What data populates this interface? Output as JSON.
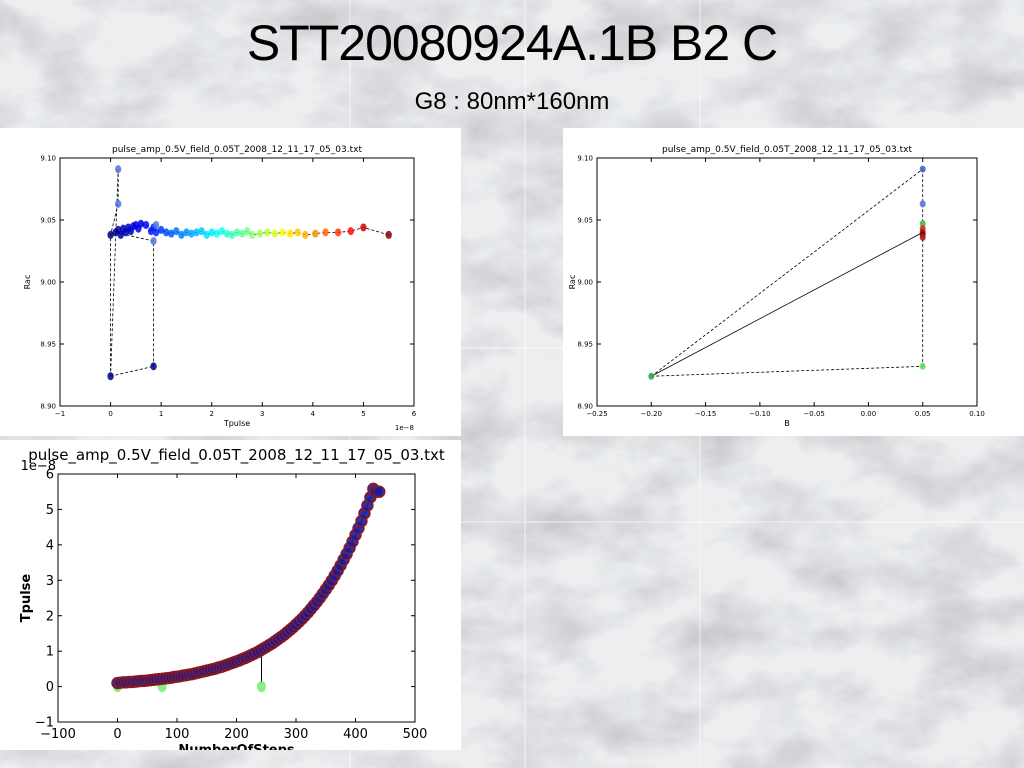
{
  "slide": {
    "title": "STT20080924A.1B B2 C",
    "subtitle": "G8 : 80nm*160nm"
  },
  "chart_data": [
    {
      "type": "scatter",
      "title": "pulse_amp_0.5V_field_0.05T_2008_12_11_17_05_03.txt",
      "xlabel": "Tpulse",
      "ylabel": "Rac",
      "x_offset_label": "1e−8",
      "xlim": [
        -1,
        6
      ],
      "ylim": [
        8.9,
        9.1
      ],
      "xticks": [
        "−1",
        "0",
        "1",
        "2",
        "3",
        "4",
        "5",
        "6"
      ],
      "yticks": [
        "8.90",
        "8.95",
        "9.00",
        "9.05",
        "9.10"
      ],
      "colormap": "jet",
      "x": [
        0.0,
        0.1,
        0.15,
        0.2,
        0.25,
        0.3,
        0.35,
        0.4,
        0.45,
        0.5,
        0.55,
        0.6,
        0.7,
        0.8,
        0.85,
        0.9,
        1.0,
        1.1,
        1.2,
        1.3,
        1.4,
        1.5,
        1.6,
        1.7,
        1.8,
        1.9,
        2.0,
        2.1,
        2.2,
        2.3,
        2.4,
        2.5,
        2.6,
        2.7,
        2.8,
        2.95,
        3.1,
        3.25,
        3.4,
        3.55,
        3.7,
        3.85,
        4.05,
        4.25,
        4.5,
        4.75,
        5.0,
        5.5,
        0.0,
        0.15,
        0.15,
        0.85,
        0.85,
        0.9
      ],
      "y": [
        9.038,
        9.04,
        9.042,
        9.038,
        9.043,
        9.04,
        9.044,
        9.041,
        9.045,
        9.046,
        9.043,
        9.047,
        9.046,
        9.041,
        9.044,
        9.04,
        9.042,
        9.04,
        9.039,
        9.041,
        9.038,
        9.04,
        9.039,
        9.04,
        9.041,
        9.038,
        9.04,
        9.039,
        9.041,
        9.039,
        9.038,
        9.04,
        9.039,
        9.041,
        9.038,
        9.039,
        9.04,
        9.039,
        9.04,
        9.039,
        9.04,
        9.038,
        9.039,
        9.04,
        9.04,
        9.041,
        9.044,
        9.038,
        8.924,
        9.091,
        9.063,
        8.932,
        9.033,
        9.046
      ]
    },
    {
      "type": "scatter",
      "title": "pulse_amp_0.5V_field_0.05T_2008_12_11_17_05_03.txt",
      "xlabel": "B",
      "ylabel": "Rac",
      "xlim": [
        -0.25,
        0.1
      ],
      "ylim": [
        8.9,
        9.1
      ],
      "xticks": [
        "−0.25",
        "−0.20",
        "−0.15",
        "−0.10",
        "−0.05",
        "0.00",
        "0.05",
        "0.10"
      ],
      "yticks": [
        "8.90",
        "8.95",
        "9.00",
        "9.05",
        "9.10"
      ],
      "x": [
        -0.2,
        0.05,
        0.05,
        0.05,
        0.05,
        0.05,
        0.05,
        0.05,
        0.05
      ],
      "y": [
        8.924,
        9.091,
        9.063,
        9.047,
        9.043,
        9.04,
        9.038,
        9.036,
        8.932
      ]
    },
    {
      "type": "scatter",
      "title": "pulse_amp_0.5V_field_0.05T_2008_12_11_17_05_03.txt",
      "xlabel": "NumberOfSteps",
      "ylabel": "Tpulse",
      "y_offset_label": "1e−8",
      "xlim": [
        -100,
        500
      ],
      "ylim": [
        -1,
        6
      ],
      "xticks": [
        "−100",
        "0",
        "100",
        "200",
        "300",
        "400",
        "500"
      ],
      "yticks": [
        "−1",
        "0",
        "1",
        "2",
        "3",
        "4",
        "5",
        "6"
      ],
      "series": [
        {
          "x": [
            0,
            5,
            10,
            15,
            20,
            25,
            30,
            35,
            40,
            45,
            50,
            55,
            60,
            65,
            70,
            75,
            80,
            85,
            90,
            95,
            100,
            105,
            110,
            115,
            120,
            125,
            130,
            135,
            140,
            145,
            150,
            155,
            160,
            165,
            170,
            175,
            180,
            185,
            190,
            195,
            200,
            205,
            210,
            215,
            220,
            225,
            230,
            235,
            240,
            245,
            250,
            255,
            260,
            265,
            270,
            275,
            280,
            285,
            290,
            295,
            300,
            305,
            310,
            315,
            320,
            325,
            330,
            335,
            340,
            345,
            350,
            355,
            360,
            365,
            370,
            375,
            380,
            385,
            390,
            395,
            400,
            405,
            410,
            415,
            420,
            425,
            430,
            435,
            440
          ],
          "y": [
            0.1,
            0.11,
            0.12,
            0.12,
            0.13,
            0.13,
            0.14,
            0.15,
            0.16,
            0.16,
            0.17,
            0.18,
            0.19,
            0.2,
            0.21,
            0.22,
            0.23,
            0.24,
            0.25,
            0.27,
            0.28,
            0.29,
            0.31,
            0.32,
            0.34,
            0.35,
            0.37,
            0.39,
            0.41,
            0.43,
            0.45,
            0.47,
            0.49,
            0.51,
            0.54,
            0.56,
            0.59,
            0.62,
            0.65,
            0.68,
            0.71,
            0.74,
            0.78,
            0.81,
            0.85,
            0.89,
            0.93,
            0.97,
            1.02,
            1.07,
            1.12,
            1.17,
            1.22,
            1.28,
            1.34,
            1.4,
            1.46,
            1.53,
            1.6,
            1.67,
            1.75,
            1.83,
            1.91,
            2.0,
            2.09,
            2.19,
            2.29,
            2.39,
            2.5,
            2.62,
            2.74,
            2.86,
            2.99,
            3.13,
            3.27,
            3.42,
            3.58,
            3.74,
            3.91,
            4.09,
            4.28,
            4.47,
            4.67,
            4.89,
            5.11,
            5.34,
            5.58,
            5.5,
            5.5
          ]
        },
        {
          "x": [
            0,
            75,
            242
          ],
          "y": [
            0,
            0,
            0
          ]
        }
      ]
    }
  ]
}
